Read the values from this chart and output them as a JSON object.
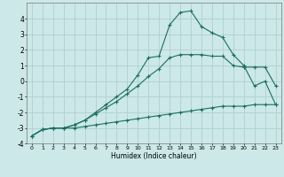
{
  "xlabel": "Humidex (Indice chaleur)",
  "bg_color": "#cce8e8",
  "grid_color": "#b0d0d0",
  "line_color": "#1a6e60",
  "xlim": [
    -0.5,
    23.5
  ],
  "ylim": [
    -4,
    5
  ],
  "xticks": [
    0,
    1,
    2,
    3,
    4,
    5,
    6,
    7,
    8,
    9,
    10,
    11,
    12,
    13,
    14,
    15,
    16,
    17,
    18,
    19,
    20,
    21,
    22,
    23
  ],
  "yticks": [
    -4,
    -3,
    -2,
    -1,
    0,
    1,
    2,
    3,
    4
  ],
  "series1_x": [
    0,
    1,
    2,
    3,
    4,
    5,
    6,
    7,
    8,
    9,
    10,
    11,
    12,
    13,
    14,
    15,
    16,
    17,
    18,
    19,
    20,
    21,
    22,
    23
  ],
  "series1_y": [
    -3.5,
    -3.1,
    -3.0,
    -3.0,
    -3.0,
    -2.9,
    -2.8,
    -2.7,
    -2.6,
    -2.5,
    -2.4,
    -2.3,
    -2.2,
    -2.1,
    -2.0,
    -1.9,
    -1.8,
    -1.7,
    -1.6,
    -1.6,
    -1.6,
    -1.5,
    -1.5,
    -1.5
  ],
  "series2_x": [
    0,
    1,
    2,
    3,
    4,
    5,
    6,
    7,
    8,
    9,
    10,
    11,
    12,
    13,
    14,
    15,
    16,
    17,
    18,
    19,
    20,
    21,
    22,
    23
  ],
  "series2_y": [
    -3.5,
    -3.1,
    -3.0,
    -3.0,
    -2.8,
    -2.5,
    -2.1,
    -1.7,
    -1.3,
    -0.8,
    -0.3,
    0.3,
    0.8,
    1.5,
    1.7,
    1.7,
    1.7,
    1.6,
    1.6,
    1.0,
    0.9,
    0.9,
    0.9,
    -0.3
  ],
  "series3_x": [
    0,
    1,
    2,
    3,
    4,
    5,
    6,
    7,
    8,
    9,
    10,
    11,
    12,
    13,
    14,
    15,
    16,
    17,
    18,
    19,
    20,
    21,
    22,
    23
  ],
  "series3_y": [
    -3.5,
    -3.1,
    -3.0,
    -3.0,
    -2.8,
    -2.5,
    -2.0,
    -1.5,
    -1.0,
    -0.5,
    0.4,
    1.5,
    1.6,
    3.6,
    4.4,
    4.5,
    3.5,
    3.1,
    2.8,
    1.7,
    1.0,
    -0.3,
    0.0,
    -1.5
  ]
}
